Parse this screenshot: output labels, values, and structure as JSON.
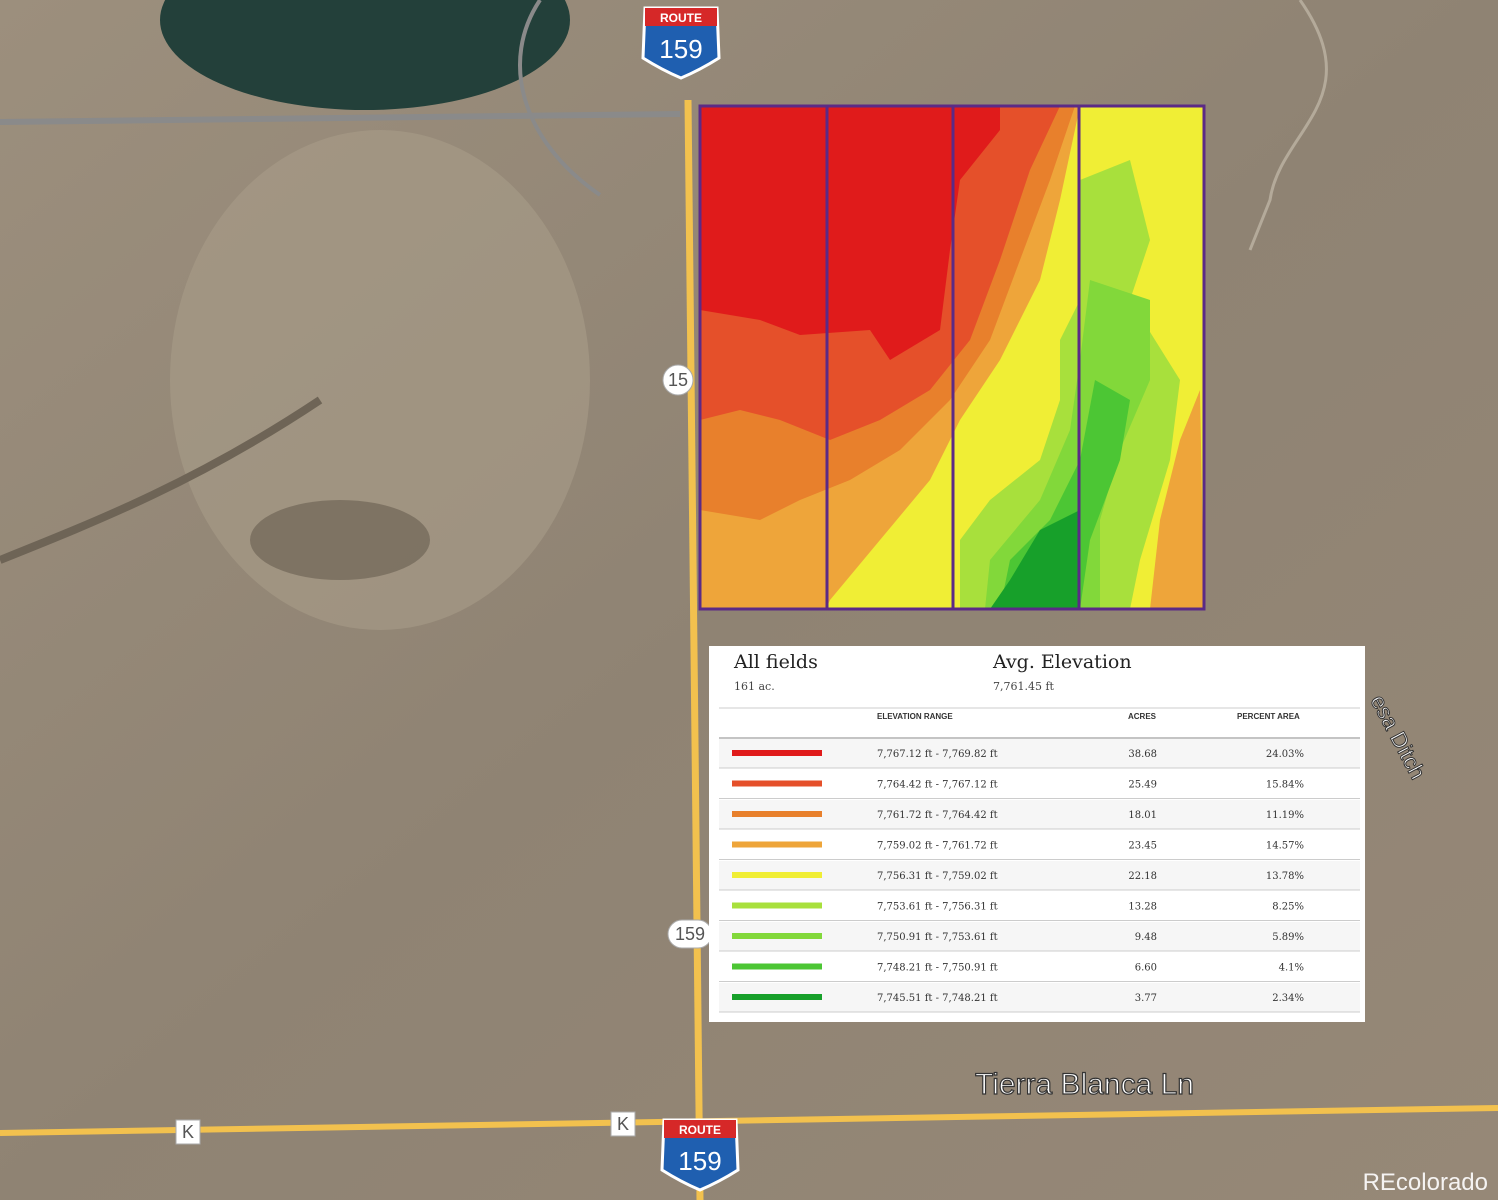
{
  "map": {
    "shields": [
      {
        "top": "ROUTE",
        "number": "159"
      },
      {
        "top": "ROUTE",
        "number": "159"
      }
    ],
    "road_labels": [
      "15",
      "159",
      "K",
      "K"
    ],
    "street": "Tierra Blanca Ln",
    "water": "esa Ditch",
    "watermark": "REcolorado"
  },
  "legend": {
    "title": "All fields",
    "area": "161 ac.",
    "avg_title": "Avg. Elevation",
    "avg_value": "7,761.45 ft",
    "headers": [
      "ELEVATION RANGE",
      "ACRES",
      "PERCENT AREA"
    ],
    "rows": [
      {
        "color": "#e01b1b",
        "range": "7,767.12 ft - 7,769.82 ft",
        "acres": "38.68",
        "percent": "24.03%"
      },
      {
        "color": "#e5502a",
        "range": "7,764.42 ft - 7,767.12 ft",
        "acres": "25.49",
        "percent": "15.84%"
      },
      {
        "color": "#e8802c",
        "range": "7,761.72 ft - 7,764.42 ft",
        "acres": "18.01",
        "percent": "11.19%"
      },
      {
        "color": "#eea53a",
        "range": "7,759.02 ft - 7,761.72 ft",
        "acres": "23.45",
        "percent": "14.57%"
      },
      {
        "color": "#f0ee35",
        "range": "7,756.31 ft - 7,759.02 ft",
        "acres": "22.18",
        "percent": "13.78%"
      },
      {
        "color": "#a8e03c",
        "range": "7,753.61 ft - 7,756.31 ft",
        "acres": "13.28",
        "percent": "8.25%"
      },
      {
        "color": "#82d83a",
        "range": "7,750.91 ft - 7,753.61 ft",
        "acres": "9.48",
        "percent": "5.89%"
      },
      {
        "color": "#4cc634",
        "range": "7,748.21 ft - 7,750.91 ft",
        "acres": "6.60",
        "percent": "4.1%"
      },
      {
        "color": "#17a02a",
        "range": "7,745.51 ft - 7,748.21 ft",
        "acres": "3.77",
        "percent": "2.34%"
      }
    ]
  }
}
